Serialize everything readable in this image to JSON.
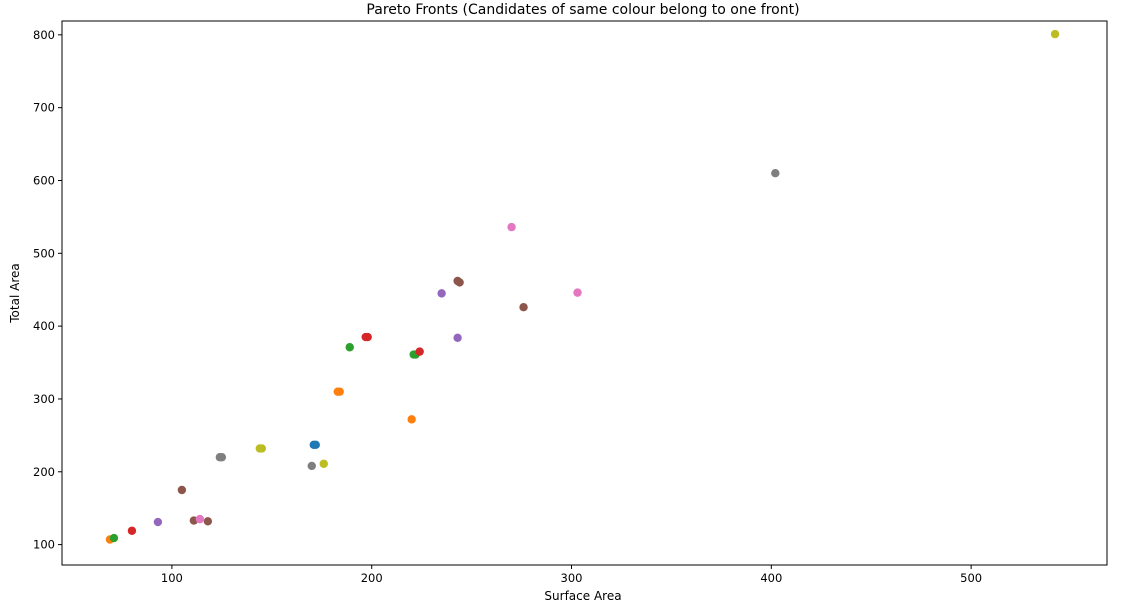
{
  "chart_data": {
    "type": "scatter",
    "title": "Pareto Fronts (Candidates of same colour belong to one front)",
    "xlabel": "Surface Area",
    "ylabel": "Total Area",
    "xlim": [
      45,
      568
    ],
    "ylim": [
      72,
      819
    ],
    "xticks": [
      100,
      200,
      300,
      400,
      500
    ],
    "yticks": [
      100,
      200,
      300,
      400,
      500,
      600,
      700,
      800
    ],
    "grid": false,
    "legend": "none",
    "series": [
      {
        "color": "#1f77b4",
        "points": [
          [
            171,
            237
          ],
          [
            172,
            237
          ]
        ]
      },
      {
        "color": "#ff7f0e",
        "points": [
          [
            69,
            107
          ],
          [
            183,
            310
          ],
          [
            184,
            310
          ],
          [
            220,
            272
          ]
        ]
      },
      {
        "color": "#2ca02c",
        "points": [
          [
            71,
            109
          ],
          [
            189,
            371
          ],
          [
            221,
            361
          ],
          [
            222,
            361
          ]
        ]
      },
      {
        "color": "#d62728",
        "points": [
          [
            80,
            119
          ],
          [
            197,
            385
          ],
          [
            198,
            385
          ],
          [
            224,
            365
          ]
        ]
      },
      {
        "color": "#9467bd",
        "points": [
          [
            93,
            131
          ],
          [
            235,
            445
          ],
          [
            243,
            384
          ]
        ]
      },
      {
        "color": "#8c564b",
        "points": [
          [
            105,
            175
          ],
          [
            111,
            133
          ],
          [
            118,
            132
          ],
          [
            243,
            462
          ],
          [
            244,
            460
          ],
          [
            276,
            426
          ]
        ]
      },
      {
        "color": "#e377c2",
        "points": [
          [
            114,
            135
          ],
          [
            270,
            536
          ],
          [
            303,
            446
          ]
        ]
      },
      {
        "color": "#7f7f7f",
        "points": [
          [
            124,
            220
          ],
          [
            125,
            220
          ],
          [
            170,
            208
          ],
          [
            402,
            610
          ]
        ]
      },
      {
        "color": "#bcbd22",
        "points": [
          [
            144,
            232
          ],
          [
            145,
            232
          ],
          [
            176,
            211
          ],
          [
            542,
            801
          ]
        ]
      }
    ]
  }
}
